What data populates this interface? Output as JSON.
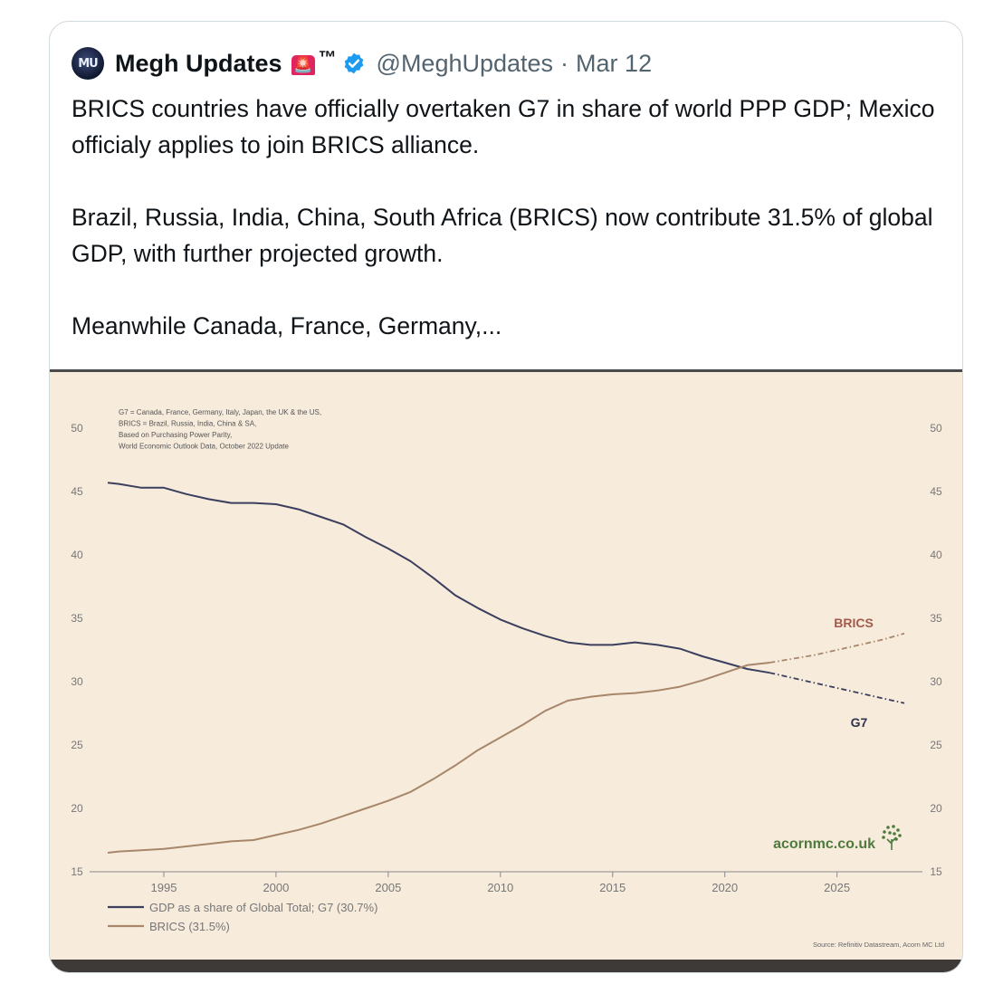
{
  "tweet": {
    "avatar_initials": "MU",
    "display_name": "Megh Updates",
    "siren_emoji": "🚨",
    "trademark": "™",
    "handle": "@MeghUpdates",
    "separator": "·",
    "date": "Mar 12",
    "paragraphs": [
      "BRICS countries have officially overtaken G7 in share of world PPP GDP; Mexico officialy applies to join BRICS alliance.",
      "Brazil, Russia, India, China, South Africa (BRICS) now contribute 31.5% of global GDP, with further projected growth.",
      "Meanwhile Canada, France, Germany,..."
    ]
  },
  "colors": {
    "g7": "#3b3f5e",
    "brics": "#a7866a",
    "brics_label": "#a25a4a",
    "chart_bg": "#f7ebdc",
    "watermark": "#4f7a3e"
  },
  "chart_data": {
    "type": "line",
    "notes": [
      "G7 = Canada, France, Germany, Italy, Japan, the UK & the US,",
      "BRICS = Brazil, Russia, India, China & SA,",
      "Based on Purchasing Power Parity,",
      "World Economic Outlook Data, October 2022 Update"
    ],
    "ylim": [
      15,
      50
    ],
    "yticks": [
      15,
      20,
      25,
      30,
      35,
      40,
      45,
      50
    ],
    "xlim": [
      1992.5,
      2028
    ],
    "xticks": [
      1995,
      2000,
      2005,
      2010,
      2015,
      2020,
      2025
    ],
    "grid": false,
    "series": [
      {
        "name": "G7",
        "label": "G7",
        "legend": "GDP as a share of Global Total; G7 (30.7%)",
        "color": "#3b3f5e",
        "x": [
          1992.5,
          1993,
          1994,
          1995,
          1996,
          1997,
          1998,
          1999,
          2000,
          2001,
          2002,
          2003,
          2004,
          2005,
          2006,
          2007,
          2008,
          2009,
          2010,
          2011,
          2012,
          2013,
          2014,
          2015,
          2016,
          2017,
          2018,
          2019,
          2020,
          2021,
          2022
        ],
        "y": [
          45.7,
          45.6,
          45.3,
          45.3,
          44.8,
          44.4,
          44.1,
          44.1,
          44.0,
          43.6,
          43.0,
          42.4,
          41.4,
          40.5,
          39.5,
          38.2,
          36.8,
          35.8,
          34.9,
          34.2,
          33.6,
          33.1,
          32.9,
          32.9,
          33.1,
          32.9,
          32.6,
          32.0,
          31.5,
          31.0,
          30.7
        ],
        "projection_x": [
          2022,
          2023,
          2024,
          2025,
          2026,
          2027,
          2028
        ],
        "projection_y": [
          30.7,
          30.3,
          29.9,
          29.5,
          29.1,
          28.7,
          28.3
        ]
      },
      {
        "name": "BRICS",
        "label": "BRICS",
        "legend": "BRICS (31.5%)",
        "color": "#a7866a",
        "x": [
          1992.5,
          1993,
          1994,
          1995,
          1996,
          1997,
          1998,
          1999,
          2000,
          2001,
          2002,
          2003,
          2004,
          2005,
          2006,
          2007,
          2008,
          2009,
          2010,
          2011,
          2012,
          2013,
          2014,
          2015,
          2016,
          2017,
          2018,
          2019,
          2020,
          2021,
          2022
        ],
        "y": [
          16.5,
          16.6,
          16.7,
          16.8,
          17.0,
          17.2,
          17.4,
          17.5,
          17.9,
          18.3,
          18.8,
          19.4,
          20.0,
          20.6,
          21.3,
          22.3,
          23.4,
          24.6,
          25.6,
          26.6,
          27.7,
          28.5,
          28.8,
          29.0,
          29.1,
          29.3,
          29.6,
          30.1,
          30.7,
          31.3,
          31.5
        ],
        "projection_x": [
          2022,
          2023,
          2024,
          2025,
          2026,
          2027,
          2028
        ],
        "projection_y": [
          31.5,
          31.8,
          32.1,
          32.5,
          32.9,
          33.3,
          33.8
        ]
      }
    ],
    "watermark": "acornmc.co.uk",
    "source": "Source: Refinitiv Datastream, Acorn MC Ltd"
  }
}
